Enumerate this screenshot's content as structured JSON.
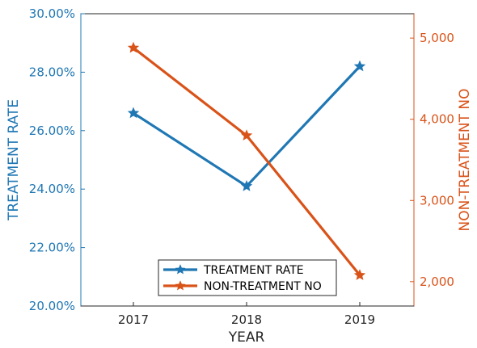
{
  "colors": {
    "left_axis": "#1f77b4",
    "right_axis": "#d95319",
    "axis_black": "#262626"
  },
  "chart_data": {
    "type": "line",
    "categories": [
      "2017",
      "2018",
      "2019"
    ],
    "xlabel": "YEAR",
    "y_left": {
      "label": "TREATMENT  RATE",
      "ylim": [
        20.0,
        30.0
      ],
      "ticks": [
        20,
        22,
        24,
        26,
        28,
        30
      ],
      "tick_labels": [
        "20.00%",
        "22.00%",
        "24.00%",
        "26.00%",
        "28.00%",
        "30.00%"
      ]
    },
    "y_right": {
      "label": "NON-TREATMENT  NO",
      "ylim": [
        1700,
        5300
      ],
      "ticks": [
        2000,
        3000,
        4000,
        5000
      ],
      "tick_labels": [
        "2,000",
        "3,000",
        "4,000",
        "5,000"
      ]
    },
    "series": [
      {
        "name": "TREATMENT  RATE",
        "axis": "left",
        "color": "#1f77b4",
        "values": [
          26.6,
          24.1,
          28.2
        ]
      },
      {
        "name": "NON-TREATMENT  NO",
        "axis": "right",
        "color": "#d95319",
        "values": [
          4880,
          3800,
          2080
        ]
      }
    ],
    "legend": "bottom-center",
    "grid": false
  }
}
